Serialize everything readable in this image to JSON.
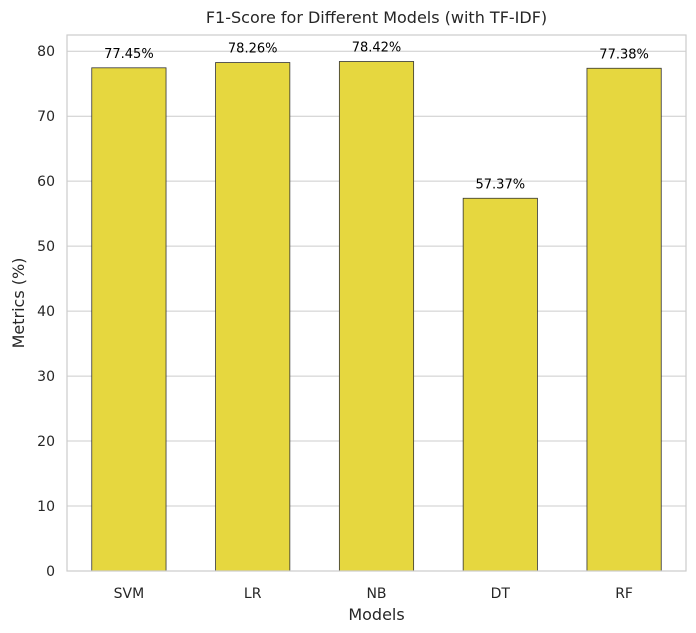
{
  "chart_data": {
    "type": "bar",
    "title": "F1-Score for Different Models (with TF-IDF)",
    "xlabel": "Models",
    "ylabel": "Metrics (%)",
    "categories": [
      "SVM",
      "LR",
      "NB",
      "DT",
      "RF"
    ],
    "values": [
      77.45,
      78.26,
      78.42,
      57.37,
      77.38
    ],
    "value_labels": [
      "77.45%",
      "78.26%",
      "78.42%",
      "57.37%",
      "77.38%"
    ],
    "ylim": [
      0,
      82.5
    ],
    "yticks": [
      0,
      10,
      20,
      30,
      40,
      50,
      60,
      70,
      80
    ],
    "ytick_labels": [
      "0",
      "10",
      "20",
      "30",
      "40",
      "50",
      "60",
      "70",
      "80"
    ],
    "grid": "horizontal",
    "bar_color": "#e6d73f",
    "bar_edge_color": "#333333",
    "grid_color": "#cccccc",
    "axis_color": "#cccccc"
  }
}
